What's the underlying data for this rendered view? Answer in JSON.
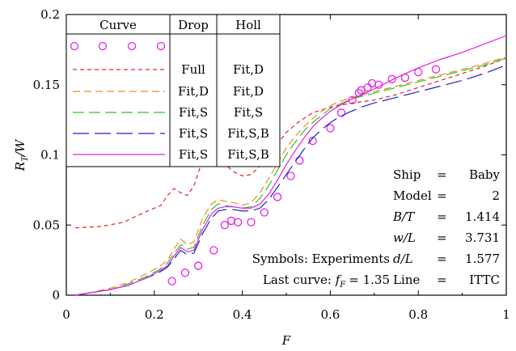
{
  "chart_data": {
    "type": "line",
    "xlabel": "F",
    "ylabel": "RT/W",
    "ylabel_main": "R",
    "ylabel_sub": "T",
    "ylabel_tail": "/W",
    "xlim": [
      0,
      1
    ],
    "ylim": [
      0,
      0.2
    ],
    "xticks": [
      0,
      0.2,
      0.4,
      0.6,
      0.8,
      1
    ],
    "xtick_labels": [
      "0",
      "0.2",
      "0.4",
      "0.6",
      "0.8",
      "1"
    ],
    "yticks": [
      0,
      0.05,
      0.1,
      0.15,
      0.2
    ],
    "ytick_labels": [
      "0",
      "0.05",
      "0.1",
      "0.15",
      "0.2"
    ],
    "grid": false,
    "legend_table": {
      "headers": [
        "Curve",
        "Drop",
        "Holl"
      ],
      "rows": [
        {
          "drop": "",
          "holl": ""
        },
        {
          "drop": "Full",
          "holl": "Fit,D"
        },
        {
          "drop": "Fit,D",
          "holl": "Fit,D"
        },
        {
          "drop": "Fit,S",
          "holl": "Fit,S"
        },
        {
          "drop": "Fit,S",
          "holl": "Fit,S,B"
        },
        {
          "drop": "Fit,S",
          "holl": "Fit,S,B"
        }
      ]
    },
    "info": [
      {
        "key": "Ship",
        "eq": "=",
        "val": "Baby"
      },
      {
        "key": "Model",
        "eq": "=",
        "val": "2"
      },
      {
        "key": "B/T",
        "eq": "=",
        "val": "1.414"
      },
      {
        "key": "w/L",
        "eq": "=",
        "val": "3.731"
      },
      {
        "key": "d/L",
        "eq": "=",
        "val": "1.577"
      },
      {
        "key": "Line",
        "eq": "=",
        "val": "ITTC"
      }
    ],
    "symbols_note": "Symbols: Experiments",
    "last_curve_prefix": "Last curve: ",
    "last_curve_f": "f",
    "last_curve_sub": "F",
    "last_curve_value": "= 1.35",
    "series": [
      {
        "style": "markers",
        "color": "#e81fe8",
        "x": [
          0.24,
          0.27,
          0.3,
          0.335,
          0.36,
          0.375,
          0.39,
          0.42,
          0.45,
          0.48,
          0.51,
          0.53,
          0.56,
          0.6,
          0.625,
          0.65,
          0.665,
          0.67,
          0.685,
          0.695,
          0.71,
          0.74,
          0.77,
          0.8,
          0.84
        ],
        "y": [
          0.01,
          0.016,
          0.021,
          0.032,
          0.05,
          0.053,
          0.052,
          0.052,
          0.059,
          0.07,
          0.085,
          0.096,
          0.11,
          0.119,
          0.13,
          0.139,
          0.144,
          0.146,
          0.148,
          0.151,
          0.15,
          0.154,
          0.155,
          0.159,
          0.161
        ]
      },
      {
        "style": "dash-short",
        "color": "#e82020",
        "x": [
          0.02,
          0.08,
          0.13,
          0.17,
          0.2,
          0.215,
          0.23,
          0.245,
          0.26,
          0.275,
          0.29,
          0.305,
          0.32,
          0.335,
          0.355,
          0.38,
          0.4,
          0.42,
          0.44,
          0.47,
          0.5,
          0.53,
          0.56,
          0.6,
          0.65,
          0.7,
          0.75,
          0.8,
          0.85,
          0.9,
          0.95,
          1.0
        ],
        "y": [
          0.048,
          0.049,
          0.052,
          0.058,
          0.062,
          0.064,
          0.071,
          0.076,
          0.073,
          0.071,
          0.078,
          0.092,
          0.11,
          0.105,
          0.095,
          0.088,
          0.085,
          0.086,
          0.092,
          0.104,
          0.116,
          0.124,
          0.13,
          0.134,
          0.137,
          0.139,
          0.143,
          0.148,
          0.153,
          0.158,
          0.163,
          0.169
        ]
      },
      {
        "style": "dash-mid",
        "color": "#f08a28",
        "x": [
          0.02,
          0.06,
          0.1,
          0.14,
          0.18,
          0.21,
          0.23,
          0.245,
          0.26,
          0.275,
          0.29,
          0.31,
          0.33,
          0.345,
          0.36,
          0.38,
          0.4,
          0.42,
          0.44,
          0.46,
          0.48,
          0.5,
          0.52,
          0.54,
          0.56,
          0.58,
          0.6,
          0.62,
          0.65,
          0.7,
          0.75,
          0.8,
          0.85,
          0.9,
          0.95,
          1.0
        ],
        "y": [
          0.0,
          0.002,
          0.005,
          0.009,
          0.015,
          0.02,
          0.025,
          0.033,
          0.04,
          0.036,
          0.038,
          0.055,
          0.065,
          0.068,
          0.067,
          0.066,
          0.064,
          0.066,
          0.073,
          0.083,
          0.094,
          0.105,
          0.113,
          0.12,
          0.126,
          0.131,
          0.135,
          0.138,
          0.141,
          0.145,
          0.149,
          0.153,
          0.157,
          0.161,
          0.165,
          0.17
        ]
      },
      {
        "style": "dash-long",
        "color": "#20cc20",
        "x": [
          0.02,
          0.06,
          0.1,
          0.14,
          0.18,
          0.21,
          0.23,
          0.245,
          0.26,
          0.275,
          0.29,
          0.31,
          0.33,
          0.345,
          0.36,
          0.38,
          0.4,
          0.42,
          0.44,
          0.46,
          0.48,
          0.5,
          0.52,
          0.54,
          0.56,
          0.58,
          0.6,
          0.62,
          0.65,
          0.7,
          0.75,
          0.8,
          0.85,
          0.9,
          0.95,
          1.0
        ],
        "y": [
          0.0,
          0.002,
          0.004,
          0.008,
          0.013,
          0.018,
          0.023,
          0.03,
          0.036,
          0.033,
          0.034,
          0.05,
          0.061,
          0.065,
          0.064,
          0.063,
          0.062,
          0.063,
          0.069,
          0.078,
          0.089,
          0.1,
          0.109,
          0.117,
          0.123,
          0.128,
          0.133,
          0.136,
          0.14,
          0.144,
          0.148,
          0.152,
          0.156,
          0.16,
          0.164,
          0.169
        ]
      },
      {
        "style": "dash-xlong",
        "color": "#2020cc",
        "x": [
          0.02,
          0.06,
          0.1,
          0.14,
          0.18,
          0.21,
          0.23,
          0.245,
          0.26,
          0.275,
          0.29,
          0.31,
          0.33,
          0.345,
          0.36,
          0.38,
          0.4,
          0.42,
          0.44,
          0.46,
          0.48,
          0.5,
          0.52,
          0.54,
          0.56,
          0.58,
          0.6,
          0.62,
          0.64,
          0.67,
          0.7,
          0.75,
          0.8,
          0.85,
          0.9,
          0.95,
          1.0
        ],
        "y": [
          0.0,
          0.002,
          0.004,
          0.007,
          0.012,
          0.016,
          0.02,
          0.026,
          0.032,
          0.029,
          0.03,
          0.044,
          0.055,
          0.06,
          0.061,
          0.061,
          0.06,
          0.06,
          0.062,
          0.068,
          0.077,
          0.086,
          0.095,
          0.104,
          0.112,
          0.118,
          0.123,
          0.127,
          0.13,
          0.134,
          0.137,
          0.141,
          0.145,
          0.149,
          0.153,
          0.158,
          0.164
        ]
      },
      {
        "style": "solid",
        "color": "#e020e0",
        "x": [
          0.02,
          0.06,
          0.1,
          0.14,
          0.18,
          0.21,
          0.23,
          0.245,
          0.26,
          0.275,
          0.29,
          0.31,
          0.33,
          0.345,
          0.36,
          0.38,
          0.4,
          0.42,
          0.44,
          0.46,
          0.48,
          0.5,
          0.52,
          0.54,
          0.56,
          0.58,
          0.6,
          0.62,
          0.65,
          0.7,
          0.75,
          0.8,
          0.85,
          0.9,
          0.95,
          1.0
        ],
        "y": [
          0.0,
          0.002,
          0.004,
          0.007,
          0.012,
          0.017,
          0.021,
          0.028,
          0.034,
          0.031,
          0.032,
          0.047,
          0.058,
          0.062,
          0.063,
          0.063,
          0.062,
          0.062,
          0.065,
          0.072,
          0.082,
          0.093,
          0.103,
          0.112,
          0.12,
          0.126,
          0.131,
          0.135,
          0.14,
          0.147,
          0.155,
          0.162,
          0.168,
          0.173,
          0.179,
          0.185
        ]
      }
    ]
  }
}
